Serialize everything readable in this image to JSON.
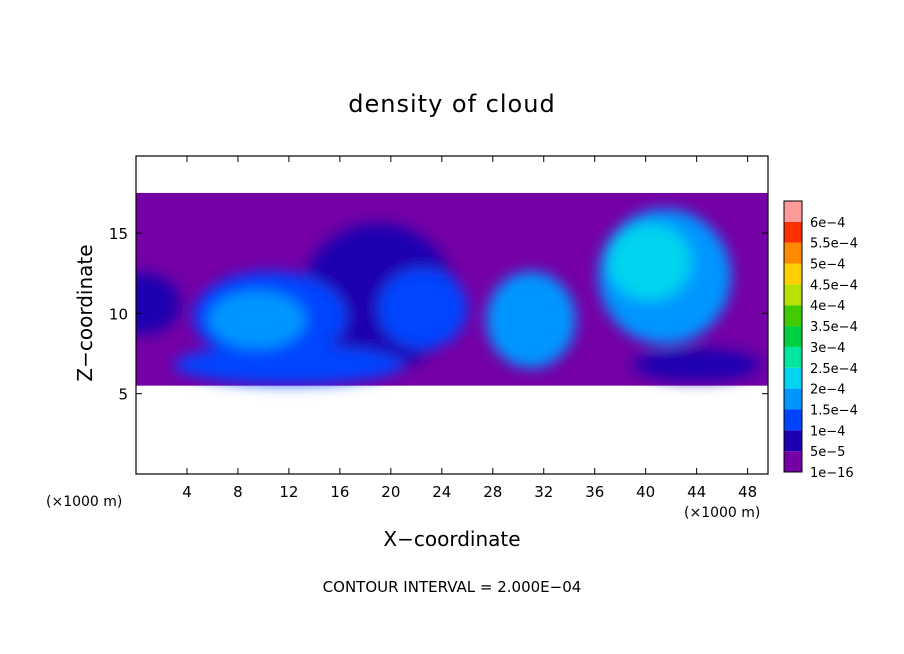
{
  "chart_data": {
    "type": "heatmap",
    "title": "density of cloud",
    "xlabel": "X−coordinate",
    "ylabel": "Z−coordinate",
    "x_unit": "(×1000 m)",
    "y_unit": "(×1000 m)",
    "xlim": [
      0,
      49.6
    ],
    "ylim": [
      0,
      19.8
    ],
    "x_ticks": [
      {
        "value": 4,
        "label": "4"
      },
      {
        "value": 8,
        "label": "8"
      },
      {
        "value": 12,
        "label": "12"
      },
      {
        "value": 16,
        "label": "16"
      },
      {
        "value": 20,
        "label": "20"
      },
      {
        "value": 24,
        "label": "24"
      },
      {
        "value": 28,
        "label": "28"
      },
      {
        "value": 32,
        "label": "32"
      },
      {
        "value": 36,
        "label": "36"
      },
      {
        "value": 40,
        "label": "40"
      },
      {
        "value": 44,
        "label": "44"
      },
      {
        "value": 48,
        "label": "48"
      }
    ],
    "y_ticks": [
      {
        "value": 5,
        "label": "5"
      },
      {
        "value": 10,
        "label": "10"
      },
      {
        "value": 15,
        "label": "15"
      }
    ],
    "colorbar": {
      "levels": [
        {
          "label": "1e−16",
          "color": "#7400a6"
        },
        {
          "label": "5e−5",
          "color": "#1a00b0"
        },
        {
          "label": "1e−4",
          "color": "#0044ff"
        },
        {
          "label": "1.5e−4",
          "color": "#0096ff"
        },
        {
          "label": "2e−4",
          "color": "#00d4ee"
        },
        {
          "label": "2.5e−4",
          "color": "#00e6a0"
        },
        {
          "label": "3e−4",
          "color": "#00d040"
        },
        {
          "label": "3.5e−4",
          "color": "#40cc00"
        },
        {
          "label": "4e−4",
          "color": "#b8e000"
        },
        {
          "label": "4.5e−4",
          "color": "#ffd000"
        },
        {
          "label": "5e−4",
          "color": "#ff8a00"
        },
        {
          "label": "5.5e−4",
          "color": "#ff3000"
        },
        {
          "label": "6e−4",
          "color": "#ff9a9a"
        }
      ]
    },
    "cloud_layer": {
      "z_bottom": 5.5,
      "z_top": 17.5
    },
    "cloud_blobs": [
      {
        "x": 0.5,
        "z": 10.6,
        "rx": 3.0,
        "rz": 1.9,
        "level": 1
      },
      {
        "x": 10.5,
        "z": 9.8,
        "rx": 6.0,
        "rz": 2.8,
        "level": 2
      },
      {
        "x": 9.5,
        "z": 9.6,
        "rx": 3.8,
        "rz": 1.8,
        "level": 3
      },
      {
        "x": 19.0,
        "z": 11.0,
        "rx": 6.0,
        "rz": 4.6,
        "level": 1
      },
      {
        "x": 22.5,
        "z": 10.3,
        "rx": 3.5,
        "rz": 2.5,
        "level": 2
      },
      {
        "x": 31.0,
        "z": 9.6,
        "rx": 3.5,
        "rz": 3.0,
        "level": 3
      },
      {
        "x": 41.5,
        "z": 12.3,
        "rx": 5.2,
        "rz": 4.2,
        "level": 3
      },
      {
        "x": 40.3,
        "z": 13.2,
        "rx": 3.3,
        "rz": 2.4,
        "level": 4
      },
      {
        "x": 12.0,
        "z": 6.8,
        "rx": 9.0,
        "rz": 1.2,
        "level": 2
      },
      {
        "x": 44.0,
        "z": 6.8,
        "rx": 5.0,
        "rz": 1.0,
        "level": 1
      }
    ],
    "footer": "CONTOUR INTERVAL = 2.000E−04"
  }
}
